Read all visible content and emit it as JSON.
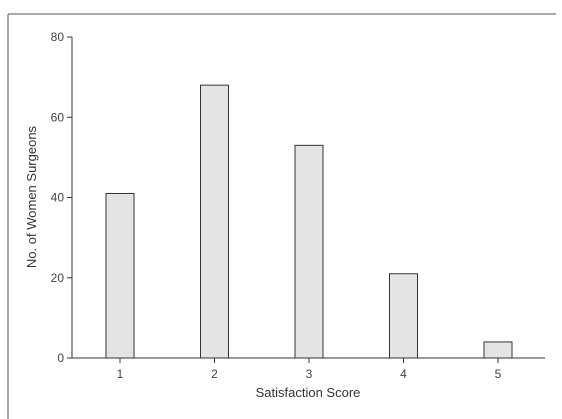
{
  "chart_data": {
    "type": "bar",
    "title": "",
    "xlabel": "Satisfaction Score",
    "ylabel": "No. of Women Surgeons",
    "categories": [
      "1",
      "2",
      "3",
      "4",
      "5"
    ],
    "values": [
      41,
      68,
      53,
      21,
      4
    ],
    "ylim": [
      0,
      80
    ],
    "yticks": [
      "0",
      "20",
      "40",
      "60",
      "80"
    ],
    "grid": false,
    "legend": "none",
    "bar_fill": "#e4e4e4",
    "bar_stroke": "#333333",
    "axis_color": "#333333"
  }
}
